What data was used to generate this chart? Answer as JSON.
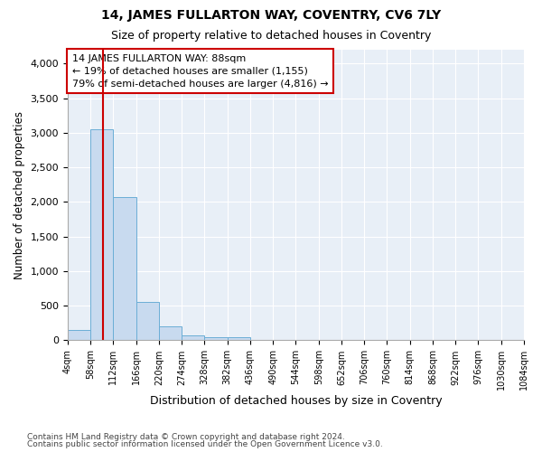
{
  "title": "14, JAMES FULLARTON WAY, COVENTRY, CV6 7LY",
  "subtitle": "Size of property relative to detached houses in Coventry",
  "xlabel": "Distribution of detached houses by size in Coventry",
  "ylabel": "Number of detached properties",
  "bin_edges": [
    4,
    58,
    112,
    166,
    220,
    274,
    328,
    382,
    436,
    490,
    544,
    598,
    652,
    706,
    760,
    814,
    868,
    922,
    976,
    1030,
    1084
  ],
  "bar_heights": [
    150,
    3050,
    2075,
    550,
    200,
    70,
    50,
    50,
    0,
    0,
    0,
    0,
    0,
    0,
    0,
    0,
    0,
    0,
    0,
    0
  ],
  "bar_color": "#c8daef",
  "bar_edge_color": "#6baed6",
  "property_line_x": 88,
  "property_line_color": "#cc0000",
  "annotation_text": "14 JAMES FULLARTON WAY: 88sqm\n← 19% of detached houses are smaller (1,155)\n79% of semi-detached houses are larger (4,816) →",
  "annotation_box_color": "#cc0000",
  "ylim": [
    0,
    4200
  ],
  "yticks": [
    0,
    500,
    1000,
    1500,
    2000,
    2500,
    3000,
    3500,
    4000
  ],
  "background_color": "#e8eff7",
  "grid_color": "#ffffff",
  "footer_line1": "Contains HM Land Registry data © Crown copyright and database right 2024.",
  "footer_line2": "Contains public sector information licensed under the Open Government Licence v3.0."
}
